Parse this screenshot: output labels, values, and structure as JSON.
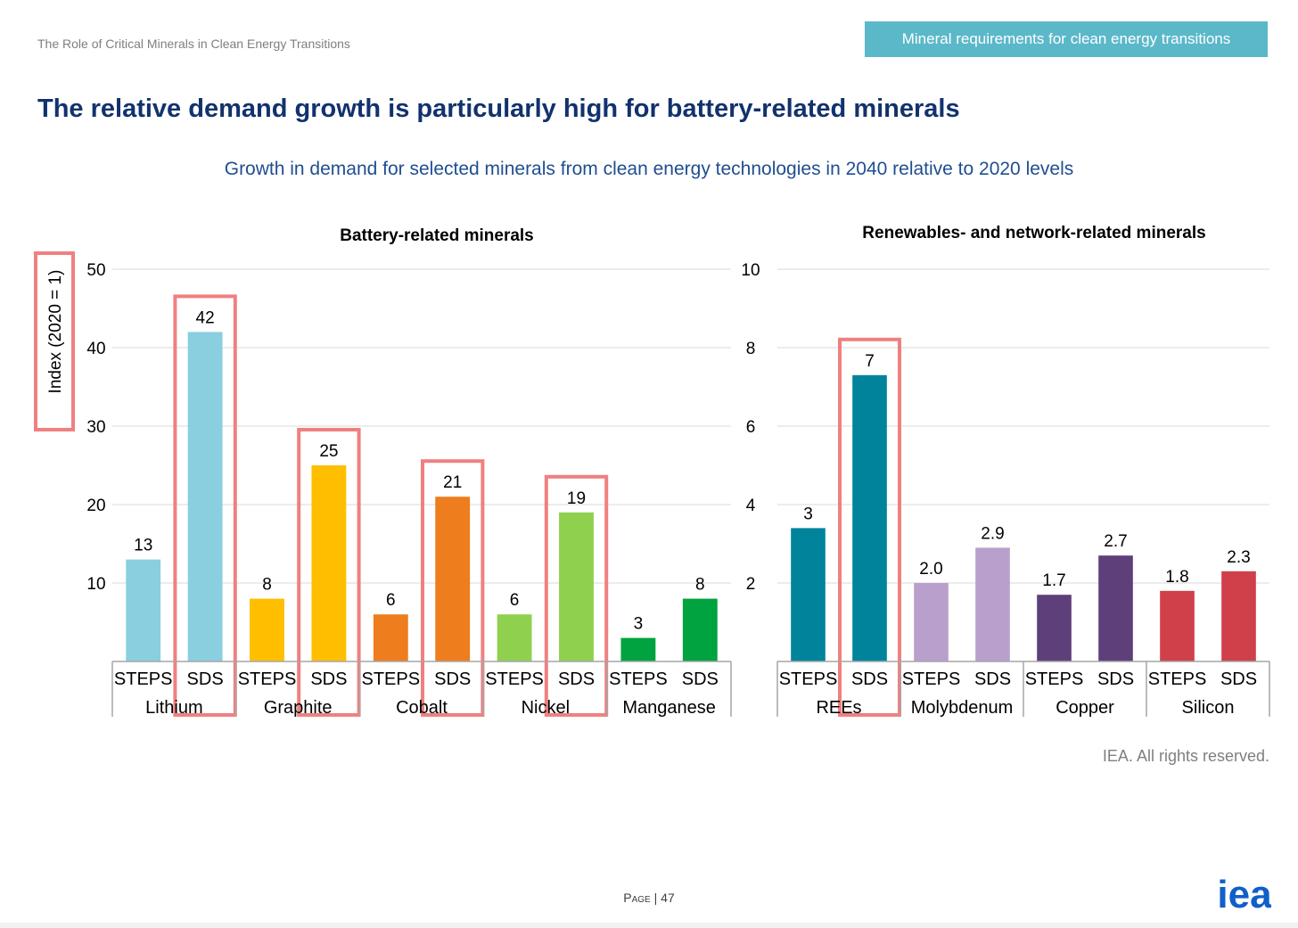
{
  "header": {
    "document_title": "The Role of Critical Minerals in Clean Energy Transitions",
    "section_tag": "Mineral requirements for clean energy transitions"
  },
  "slide_title": "The relative demand growth is particularly high for battery-related minerals",
  "chart_subtitle": "Growth in demand for selected minerals from clean energy technologies in 2040 relative to 2020 levels",
  "footer": {
    "copyright": "IEA. All rights reserved.",
    "page_label": "Page",
    "page_number": "47",
    "logo_text": "iea"
  },
  "colors": {
    "title": "#12326e",
    "subtitle": "#1f4e91",
    "tag_background": "#5bb8c9",
    "highlight_box": "#f08080",
    "logo": "#1060c8"
  },
  "chart_data": [
    {
      "type": "bar",
      "title": "Battery-related minerals",
      "ylabel": "Index (2020 = 1)",
      "ylim": [
        0,
        50
      ],
      "yticks": [
        10,
        20,
        30,
        40,
        50
      ],
      "grid": true,
      "groups": [
        {
          "name": "Lithium",
          "bars": [
            {
              "scenario": "STEPS",
              "value": 13,
              "label": "13",
              "color": "#89cfe0"
            },
            {
              "scenario": "SDS",
              "value": 42,
              "label": "42",
              "color": "#89cfe0",
              "highlighted": true
            }
          ]
        },
        {
          "name": "Graphite",
          "bars": [
            {
              "scenario": "STEPS",
              "value": 8,
              "label": "8",
              "color": "#ffbf00"
            },
            {
              "scenario": "SDS",
              "value": 25,
              "label": "25",
              "color": "#ffbf00",
              "highlighted": true
            }
          ]
        },
        {
          "name": "Cobalt",
          "bars": [
            {
              "scenario": "STEPS",
              "value": 6,
              "label": "6",
              "color": "#ee7d1e"
            },
            {
              "scenario": "SDS",
              "value": 21,
              "label": "21",
              "color": "#ee7d1e",
              "highlighted": true
            }
          ]
        },
        {
          "name": "Nickel",
          "bars": [
            {
              "scenario": "STEPS",
              "value": 6,
              "label": "6",
              "color": "#8fd14f"
            },
            {
              "scenario": "SDS",
              "value": 19,
              "label": "19",
              "color": "#8fd14f",
              "highlighted": true
            }
          ]
        },
        {
          "name": "Manganese",
          "bars": [
            {
              "scenario": "STEPS",
              "value": 3,
              "label": "3",
              "color": "#00a33f"
            },
            {
              "scenario": "SDS",
              "value": 8,
              "label": "8",
              "color": "#00a33f"
            }
          ]
        }
      ]
    },
    {
      "type": "bar",
      "title": "Renewables- and network-related minerals",
      "ylim": [
        0,
        10
      ],
      "yticks": [
        2,
        4,
        6,
        8,
        10
      ],
      "grid": true,
      "groups": [
        {
          "name": "REEs",
          "bars": [
            {
              "scenario": "STEPS",
              "value": 3.4,
              "label": "3",
              "color": "#00849c"
            },
            {
              "scenario": "SDS",
              "value": 7.3,
              "label": "7",
              "color": "#00849c",
              "highlighted": true
            }
          ]
        },
        {
          "name": "Molybdenum",
          "bars": [
            {
              "scenario": "STEPS",
              "value": 2.0,
              "label": "2.0",
              "color": "#b9a0cc"
            },
            {
              "scenario": "SDS",
              "value": 2.9,
              "label": "2.9",
              "color": "#b9a0cc"
            }
          ]
        },
        {
          "name": "Copper",
          "bars": [
            {
              "scenario": "STEPS",
              "value": 1.7,
              "label": "1.7",
              "color": "#5e3f7a"
            },
            {
              "scenario": "SDS",
              "value": 2.7,
              "label": "2.7",
              "color": "#5e3f7a"
            }
          ]
        },
        {
          "name": "Silicon",
          "bars": [
            {
              "scenario": "STEPS",
              "value": 1.8,
              "label": "1.8",
              "color": "#d0404a"
            },
            {
              "scenario": "SDS",
              "value": 2.3,
              "label": "2.3",
              "color": "#d0404a"
            }
          ]
        }
      ]
    }
  ]
}
